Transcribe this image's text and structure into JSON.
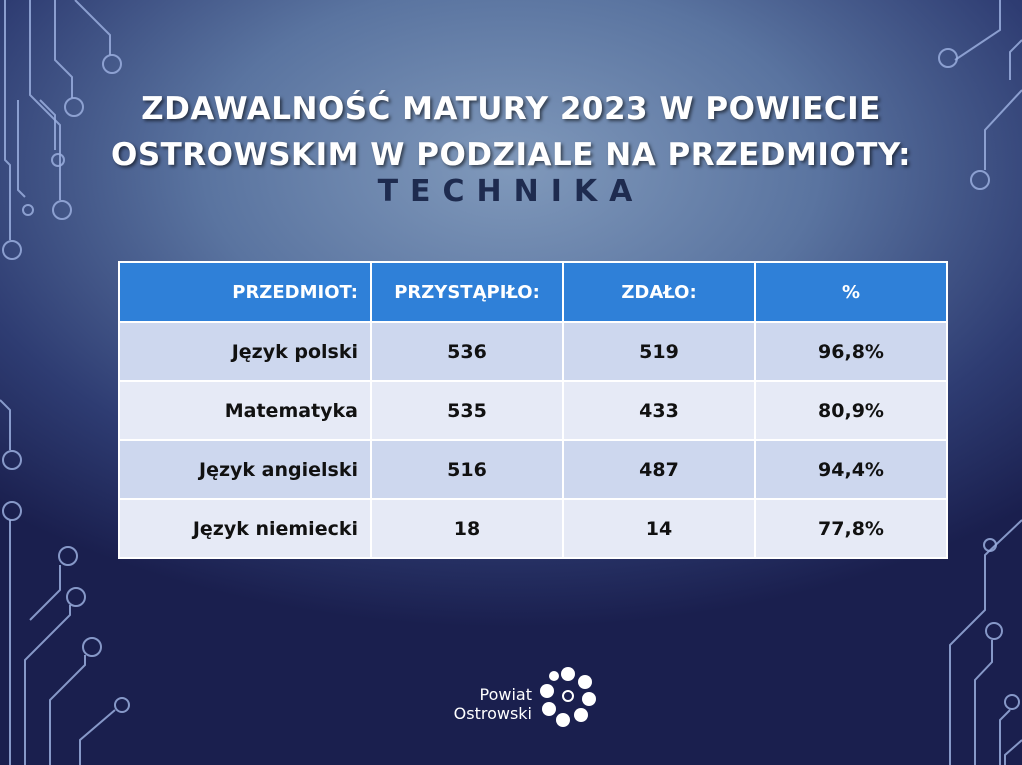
{
  "slide": {
    "title_line1": "ZDAWALNOŚĆ MATURY 2023 W POWIECIE",
    "title_line2": "OSTROWSKIM W PODZIALE NA PRZEDMIOTY:",
    "subtitle": "TECHNIKA"
  },
  "table": {
    "headers": [
      "PRZEDMIOT:",
      "PRZYSTĄPIŁO:",
      "ZDAŁO:",
      "%"
    ],
    "rows": [
      {
        "subject": "Język polski",
        "took": "536",
        "passed": "519",
        "percent": "96,8%"
      },
      {
        "subject": "Matematyka",
        "took": "535",
        "passed": "433",
        "percent": "80,9%"
      },
      {
        "subject": "Język angielski",
        "took": "516",
        "passed": "487",
        "percent": "94,4%"
      },
      {
        "subject": "Język niemiecki",
        "took": "18",
        "passed": "14",
        "percent": "77,8%"
      }
    ]
  },
  "logo": {
    "line1": "Powiat",
    "line2": "Ostrowski"
  },
  "colors": {
    "header_bg": "#2f80d8",
    "row_odd": "#cdd7ee",
    "row_even": "#e6eaf6",
    "subtitle": "#1e2b4f"
  }
}
